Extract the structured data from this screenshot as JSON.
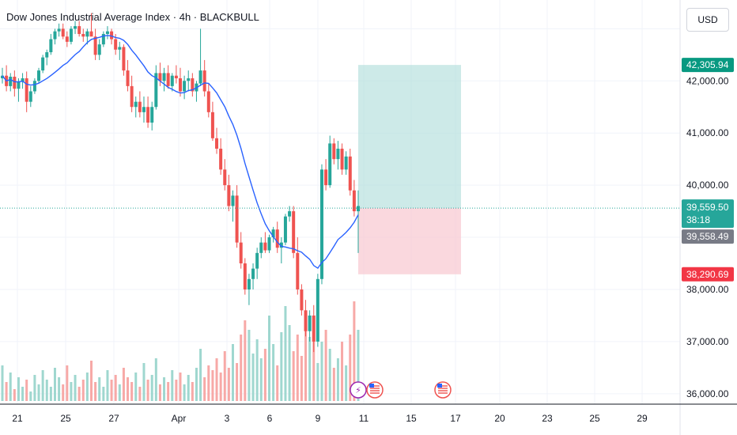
{
  "header": {
    "title": "Dow Jones Industrial Average Index · 4h · BLACKBULL",
    "currency": "USD"
  },
  "colors": {
    "up": "#26a69a",
    "down": "#ef5350",
    "ma": "#2962ff",
    "target_zone": "#b2dfdb",
    "stop_zone": "#f8c8d0",
    "price_line": "#26a69a",
    "target_label": "#089981",
    "stop_label": "#f23645",
    "grey_label": "#787b86"
  },
  "chart_data": {
    "type": "candlestick",
    "ylim": [
      35800,
      43400
    ],
    "y_ticks": [
      "42,000.00",
      "41,000.00",
      "40,000.00",
      "38,000.00",
      "37,000.00",
      "36,000.00"
    ],
    "y_tick_values": [
      42000,
      41000,
      40000,
      38000,
      37000,
      36000
    ],
    "x_ticks": [
      "21",
      "25",
      "27",
      "Apr",
      "3",
      "6",
      "9",
      "11",
      "15",
      "17",
      "20",
      "23",
      "25",
      "29"
    ],
    "price_labels": {
      "target": "42,305.94",
      "current": "39,559.50",
      "countdown": "38:18",
      "secondary": "39,558.49",
      "stop": "38,290.69"
    },
    "price_values": {
      "target": 42305.94,
      "current": 39559.5,
      "stop": 38290.69
    },
    "candles": [
      [
        42050,
        42250,
        41950,
        42100
      ],
      [
        42100,
        42300,
        41800,
        41900
      ],
      [
        41900,
        42150,
        41800,
        42080
      ],
      [
        42080,
        42200,
        41700,
        41850
      ],
      [
        41850,
        42050,
        41600,
        41980
      ],
      [
        41980,
        42150,
        41850,
        42050
      ],
      [
        42050,
        42180,
        41400,
        41600
      ],
      [
        41600,
        41900,
        41500,
        41800
      ],
      [
        41800,
        42050,
        41750,
        42000
      ],
      [
        42000,
        42250,
        41950,
        42200
      ],
      [
        42200,
        42500,
        42150,
        42450
      ],
      [
        42450,
        42600,
        42300,
        42550
      ],
      [
        42550,
        42900,
        42500,
        42800
      ],
      [
        42800,
        43000,
        42700,
        42950
      ],
      [
        42950,
        43100,
        42850,
        43000
      ],
      [
        43000,
        43100,
        42800,
        42850
      ],
      [
        42850,
        42950,
        42650,
        42750
      ],
      [
        42750,
        43050,
        42700,
        43000
      ],
      [
        43000,
        43150,
        42900,
        43050
      ],
      [
        43050,
        43150,
        42850,
        42900
      ],
      [
        42900,
        43000,
        42750,
        42850
      ],
      [
        42850,
        43000,
        42700,
        42950
      ],
      [
        42950,
        43300,
        42900,
        42850
      ],
      [
        42850,
        43000,
        42400,
        42500
      ],
      [
        42500,
        42800,
        42400,
        42700
      ],
      [
        42700,
        42950,
        42650,
        42900
      ],
      [
        42900,
        43050,
        42800,
        42950
      ],
      [
        42950,
        43000,
        42700,
        42800
      ],
      [
        42800,
        42900,
        42500,
        42600
      ],
      [
        42600,
        42750,
        42400,
        42650
      ],
      [
        42650,
        42700,
        42100,
        42200
      ],
      [
        42200,
        42400,
        41800,
        41900
      ],
      [
        41900,
        42100,
        41400,
        41500
      ],
      [
        41500,
        41700,
        41300,
        41600
      ],
      [
        41600,
        41800,
        41300,
        41400
      ],
      [
        41400,
        41700,
        41200,
        41500
      ],
      [
        41500,
        41700,
        41100,
        41200
      ],
      [
        41200,
        41600,
        41050,
        41500
      ],
      [
        41500,
        42300,
        41450,
        42150
      ],
      [
        42150,
        42350,
        41900,
        42000
      ],
      [
        42000,
        42250,
        41800,
        42150
      ],
      [
        42150,
        42300,
        41850,
        41900
      ],
      [
        41900,
        42150,
        41800,
        42100
      ],
      [
        42100,
        42300,
        41950,
        42050
      ],
      [
        42050,
        42250,
        41700,
        41800
      ],
      [
        41800,
        42100,
        41650,
        42000
      ],
      [
        42000,
        42200,
        41800,
        42050
      ],
      [
        42050,
        42150,
        41700,
        41800
      ],
      [
        41800,
        42000,
        41600,
        41950
      ],
      [
        41950,
        43000,
        41900,
        42200
      ],
      [
        42200,
        42400,
        41700,
        41800
      ],
      [
        41800,
        41950,
        41300,
        41400
      ],
      [
        41400,
        41600,
        40850,
        40900
      ],
      [
        40900,
        41100,
        40600,
        40700
      ],
      [
        40700,
        40900,
        40200,
        40300
      ],
      [
        40300,
        40500,
        39900,
        40000
      ],
      [
        40000,
        40200,
        39500,
        39600
      ],
      [
        39600,
        39900,
        39300,
        39800
      ],
      [
        39800,
        40000,
        38800,
        38900
      ],
      [
        38900,
        39100,
        38400,
        38500
      ],
      [
        38500,
        38600,
        37900,
        38000
      ],
      [
        38000,
        38300,
        37700,
        38200
      ],
      [
        38200,
        38500,
        38000,
        38400
      ],
      [
        38400,
        38800,
        38200,
        38700
      ],
      [
        38700,
        39000,
        38600,
        38900
      ],
      [
        38900,
        39100,
        38700,
        38750
      ],
      [
        38750,
        39050,
        38700,
        39000
      ],
      [
        39000,
        39200,
        38900,
        39150
      ],
      [
        39150,
        39300,
        38700,
        38800
      ],
      [
        38800,
        39000,
        38500,
        38900
      ],
      [
        38900,
        39450,
        38850,
        39400
      ],
      [
        39400,
        39600,
        39300,
        39500
      ],
      [
        39500,
        39600,
        38600,
        38700
      ],
      [
        38700,
        39000,
        37900,
        38000
      ],
      [
        38000,
        38100,
        37500,
        37600
      ],
      [
        37600,
        37800,
        37100,
        37200
      ],
      [
        37200,
        37600,
        37000,
        37500
      ],
      [
        37500,
        37700,
        36800,
        37000
      ],
      [
        37000,
        38300,
        36900,
        38200
      ],
      [
        38200,
        40400,
        38100,
        40300
      ],
      [
        40300,
        40500,
        39900,
        40000
      ],
      [
        40000,
        40950,
        39950,
        40800
      ],
      [
        40800,
        40900,
        40400,
        40500
      ],
      [
        40500,
        40850,
        40300,
        40700
      ],
      [
        40700,
        40800,
        40200,
        40300
      ],
      [
        40300,
        40650,
        40200,
        40550
      ],
      [
        40550,
        40700,
        39800,
        39900
      ],
      [
        39900,
        40100,
        39400,
        39500
      ],
      [
        39500,
        39900,
        38700,
        39600
      ]
    ],
    "volumes": [
      1.5,
      0.8,
      1.2,
      0.5,
      1.0,
      0.6,
      0.9,
      0.4,
      1.1,
      0.7,
      1.3,
      0.9,
      0.6,
      1.4,
      1.0,
      0.7,
      1.5,
      0.8,
      1.1,
      0.6,
      0.9,
      1.2,
      1.7,
      0.8,
      1.0,
      0.6,
      1.3,
      0.9,
      1.1,
      0.7,
      1.4,
      1.0,
      0.8,
      1.2,
      0.6,
      1.6,
      0.9,
      1.1,
      1.8,
      0.7,
      1.0,
      0.8,
      1.3,
      0.9,
      1.2,
      0.7,
      1.1,
      0.8,
      1.4,
      2.2,
      1.0,
      1.5,
      1.3,
      1.8,
      1.2,
      2.1,
      1.4,
      2.4,
      1.6,
      2.8,
      3.4,
      3.0,
      2.0,
      2.6,
      1.8,
      2.2,
      3.6,
      2.4,
      1.5,
      2.9,
      4.0,
      3.2,
      2.1,
      2.8,
      1.9,
      3.5,
      2.7,
      3.3,
      1.6,
      2.5,
      3.0,
      2.2,
      1.4,
      1.8,
      2.5,
      1.5,
      2.8,
      4.2,
      3.0
    ]
  }
}
